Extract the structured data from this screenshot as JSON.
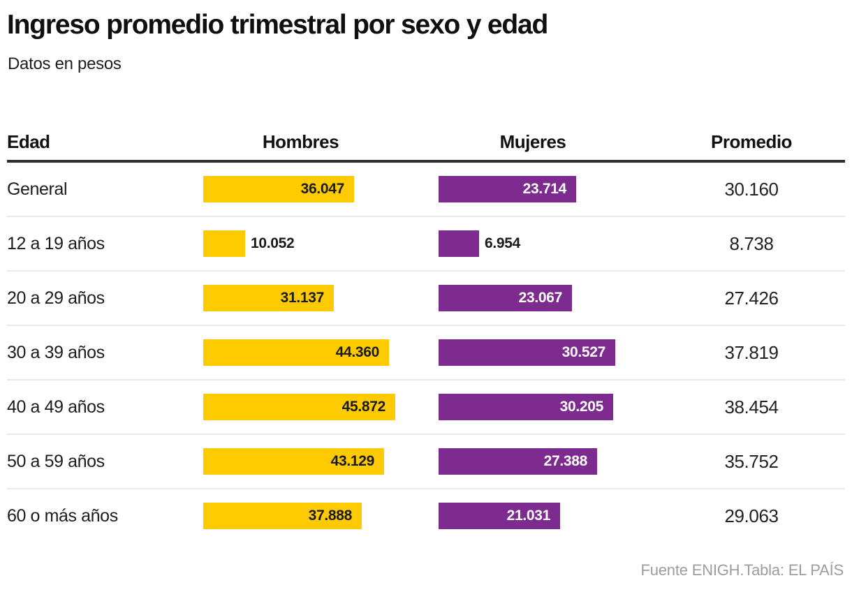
{
  "header": {
    "title": "Ingreso promedio trimestral por sexo y edad",
    "subtitle": "Datos en pesos"
  },
  "footer": {
    "source": "Fuente ENIGH.Tabla: EL PAÍS"
  },
  "colors": {
    "hombres_bar": "#FDCB00",
    "mujeres_bar": "#7E2B8F",
    "hombres_bar_text": "#1a1a1a",
    "mujeres_bar_text": "#ffffff",
    "header_rule": "#2e2e2e",
    "row_rule": "#e9e9e9",
    "source_text": "#9d9d9d"
  },
  "chart_data": {
    "type": "bar",
    "title": "Ingreso promedio trimestral por sexo y edad",
    "subtitle": "Datos en pesos",
    "xlabel": "Edad",
    "legend_position": "column-headers",
    "grid": false,
    "categories": [
      "General",
      "12 a 19 años",
      "20 a 29 años",
      "30 a 39 años",
      "40 a 49 años",
      "50 a 59 años",
      "60 o más años"
    ],
    "series": [
      {
        "name": "Hombres",
        "color": "#FDCB00",
        "values": [
          36047,
          10052,
          31137,
          44360,
          45872,
          43129,
          37888
        ],
        "labels": [
          "36.047",
          "10.052",
          "31.137",
          "44.360",
          "45.872",
          "43.129",
          "37.888"
        ]
      },
      {
        "name": "Mujeres",
        "color": "#7E2B8F",
        "values": [
          23714,
          6954,
          23067,
          30527,
          30205,
          27388,
          21031
        ],
        "labels": [
          "23.714",
          "6.954",
          "23.067",
          "30.527",
          "30.205",
          "27.388",
          "21.031"
        ]
      }
    ],
    "promedio": {
      "name": "Promedio",
      "values": [
        30160,
        8738,
        27426,
        37819,
        38454,
        35752,
        29063
      ],
      "labels": [
        "30.160",
        "8.738",
        "27.426",
        "37.819",
        "38.454",
        "35.752",
        "29.063"
      ]
    }
  }
}
